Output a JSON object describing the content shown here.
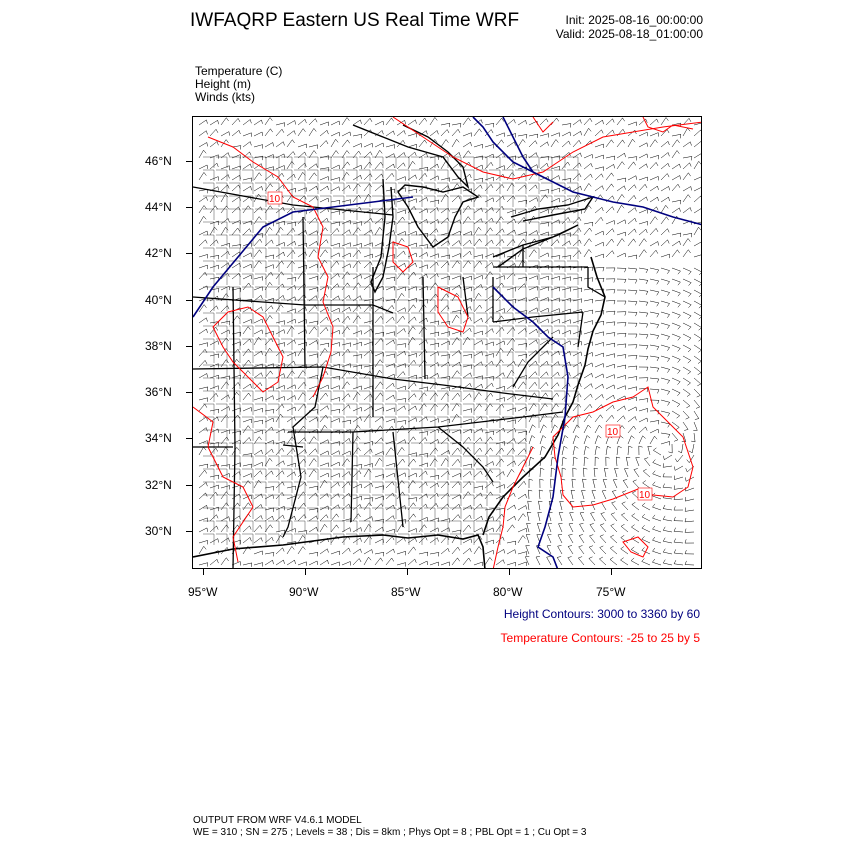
{
  "header": {
    "title": "IWFAQRP Eastern US Real Time WRF",
    "init": "Init: 2025-08-16_00:00:00",
    "valid": "Valid: 2025-08-18_01:00:00"
  },
  "fields": [
    {
      "label": "Temperature   (C)"
    },
    {
      "label": "Height   (m)"
    },
    {
      "label": "Winds   (kts)"
    }
  ],
  "map": {
    "lat_labels": [
      "46°N",
      "44°N",
      "42°N",
      "40°N",
      "38°N",
      "36°N",
      "34°N",
      "32°N",
      "30°N"
    ],
    "lon_labels": [
      "95°W",
      "90°W",
      "85°W",
      "80°W",
      "75°W"
    ],
    "temperature_contour_labels": [
      "10",
      "10",
      "10"
    ],
    "colors": {
      "height_contour": "#00007f",
      "temperature_contour": "#ff0000",
      "boundaries": "#000000",
      "wind_barbs": "#000000"
    }
  },
  "legend": {
    "height": "Height Contours: 3000 to 3360 by 60",
    "temperature": "Temperature Contours: -25 to 25 by 5"
  },
  "footer": {
    "line1": "OUTPUT FROM WRF V4.6.1 MODEL",
    "line2": "WE = 310 ; SN = 275 ; Levels = 38 ; Dis = 8km ; Phys Opt = 8 ; PBL Opt = 1 ; Cu Opt = 3"
  }
}
